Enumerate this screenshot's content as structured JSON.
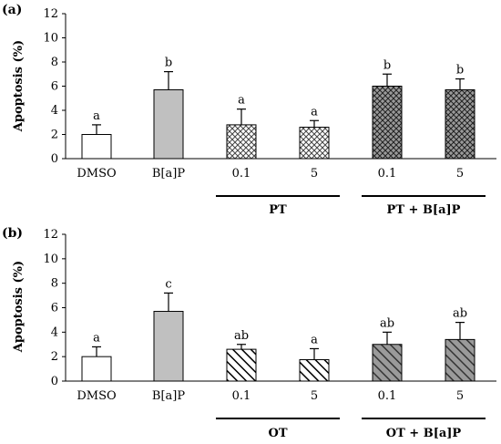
{
  "chart_data": [
    {
      "type": "bar",
      "panel_label": "(a)",
      "ylabel": "Apoptosis (%)",
      "ylim": [
        0,
        12
      ],
      "yticks": [
        "0",
        "2",
        "4",
        "6",
        "8",
        "10",
        "12"
      ],
      "categories": [
        "DMSO",
        "B[a]P",
        "0.1",
        "5",
        "0.1",
        "5"
      ],
      "values": [
        2.0,
        5.7,
        2.8,
        2.6,
        6.0,
        5.7
      ],
      "errors": [
        0.8,
        1.5,
        1.3,
        0.55,
        1.0,
        0.9
      ],
      "significance": [
        "a",
        "b",
        "a",
        "a",
        "b",
        "b"
      ],
      "fills": [
        "white",
        "gray",
        "crosshatch",
        "crosshatch",
        "dark-crosshatch",
        "dark-crosshatch"
      ],
      "groups": [
        {
          "label": "PT",
          "bars": [
            2,
            3
          ]
        },
        {
          "label": "PT + B[a]P",
          "bars": [
            4,
            5
          ]
        }
      ]
    },
    {
      "type": "bar",
      "panel_label": "(b)",
      "ylabel": "Apoptosis (%)",
      "ylim": [
        0,
        12
      ],
      "yticks": [
        "0",
        "2",
        "4",
        "6",
        "8",
        "10",
        "12"
      ],
      "categories": [
        "DMSO",
        "B[a]P",
        "0.1",
        "5",
        "0.1",
        "5"
      ],
      "values": [
        2.0,
        5.7,
        2.6,
        1.75,
        3.0,
        3.4
      ],
      "errors": [
        0.8,
        1.5,
        0.4,
        0.9,
        1.0,
        1.4
      ],
      "significance": [
        "a",
        "c",
        "ab",
        "a",
        "ab",
        "ab"
      ],
      "fills": [
        "white",
        "gray",
        "hatch",
        "hatch",
        "dark-hatch",
        "dark-hatch"
      ],
      "groups": [
        {
          "label": "OT",
          "bars": [
            2,
            3
          ]
        },
        {
          "label": "OT + B[a]P",
          "bars": [
            4,
            5
          ]
        }
      ]
    }
  ],
  "colors": {
    "bar_stroke": "#000000",
    "gray_bar": "#c0c0c0",
    "dark_bar": "#9a9a9a",
    "axis": "#000000"
  }
}
